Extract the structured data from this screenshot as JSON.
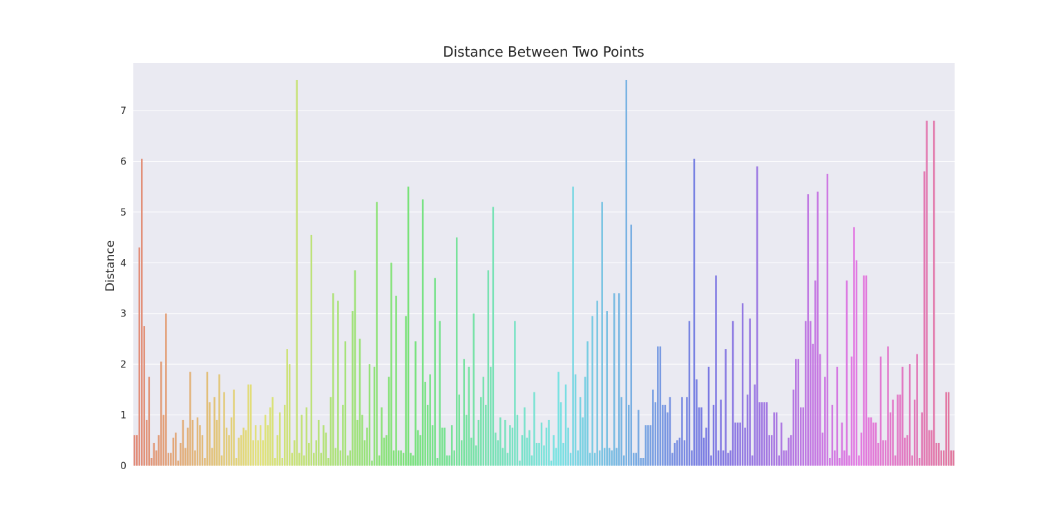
{
  "chart_data": {
    "type": "bar",
    "title": "Distance Between Two Points",
    "xlabel": "",
    "ylabel": "Distance",
    "ylim": [
      0,
      7.94
    ],
    "yticks": [
      "0",
      "1",
      "2",
      "3",
      "4",
      "5",
      "6",
      "7"
    ],
    "grid": true,
    "legend": "none",
    "palette": "husl",
    "values": [
      0.6,
      0.6,
      4.3,
      6.05,
      2.75,
      0.9,
      1.75,
      0.15,
      0.45,
      0.3,
      0.6,
      2.05,
      1.0,
      3.0,
      0.25,
      0.25,
      0.55,
      0.65,
      0.1,
      0.45,
      0.9,
      0.35,
      0.75,
      1.85,
      0.9,
      0.3,
      0.95,
      0.8,
      0.6,
      0.15,
      1.85,
      1.25,
      0.35,
      1.35,
      0.9,
      1.8,
      0.2,
      1.45,
      0.75,
      0.6,
      0.95,
      1.5,
      0.15,
      0.55,
      0.6,
      0.75,
      0.7,
      1.6,
      1.6,
      0.5,
      0.8,
      0.5,
      0.8,
      0.5,
      1.0,
      0.8,
      1.15,
      1.35,
      0.15,
      0.6,
      1.05,
      0.15,
      1.2,
      2.3,
      2.0,
      0.25,
      0.5,
      7.6,
      0.25,
      1.0,
      0.2,
      1.15,
      0.45,
      4.55,
      0.25,
      0.5,
      0.9,
      0.25,
      0.8,
      0.65,
      0.15,
      1.35,
      3.4,
      0.35,
      3.25,
      0.3,
      1.2,
      2.45,
      0.2,
      0.3,
      3.05,
      3.85,
      0.9,
      2.5,
      1.0,
      0.5,
      0.75,
      2.0,
      0.1,
      1.95,
      5.2,
      0.2,
      1.15,
      0.55,
      0.6,
      1.75,
      4.0,
      0.3,
      3.35,
      0.3,
      0.3,
      0.25,
      2.95,
      5.5,
      0.25,
      0.2,
      2.45,
      0.7,
      0.6,
      5.25,
      1.65,
      1.2,
      1.8,
      0.8,
      3.7,
      0.15,
      2.85,
      0.75,
      0.75,
      0.2,
      0.2,
      0.8,
      0.3,
      4.5,
      1.4,
      0.5,
      2.1,
      1.0,
      1.95,
      0.55,
      3.0,
      0.4,
      0.9,
      1.35,
      1.75,
      1.2,
      3.85,
      1.95,
      5.1,
      0.65,
      0.5,
      0.95,
      0.35,
      0.9,
      0.25,
      0.8,
      0.75,
      2.85,
      1.0,
      0.1,
      0.6,
      1.15,
      0.55,
      0.7,
      0.2,
      1.45,
      0.45,
      0.45,
      0.85,
      0.4,
      0.75,
      0.9,
      0.1,
      0.6,
      0.35,
      1.85,
      1.25,
      0.45,
      1.6,
      0.75,
      0.25,
      5.5,
      1.8,
      0.3,
      1.35,
      0.95,
      1.75,
      2.45,
      0.25,
      2.95,
      0.25,
      3.25,
      0.3,
      5.2,
      0.35,
      3.05,
      0.35,
      0.3,
      3.4,
      0.35,
      3.4,
      1.35,
      0.2,
      7.6,
      1.2,
      4.75,
      0.25,
      0.25,
      1.1,
      0.15,
      0.15,
      0.8,
      0.8,
      0.8,
      1.5,
      1.25,
      2.35,
      2.35,
      1.2,
      1.2,
      1.05,
      1.35,
      0.25,
      0.45,
      0.5,
      0.55,
      1.35,
      0.5,
      1.35,
      2.85,
      0.3,
      6.05,
      1.7,
      1.15,
      1.15,
      0.55,
      0.75,
      1.95,
      0.2,
      1.2,
      3.75,
      0.3,
      1.3,
      0.3,
      2.3,
      0.25,
      0.3,
      2.85,
      0.85,
      0.85,
      0.85,
      3.2,
      0.75,
      1.4,
      2.9,
      0.2,
      1.6,
      5.9,
      1.25,
      1.25,
      1.25,
      1.25,
      0.6,
      0.6,
      1.05,
      1.05,
      0.2,
      0.85,
      0.3,
      0.3,
      0.55,
      0.6,
      1.5,
      2.1,
      2.1,
      1.15,
      1.15,
      2.85,
      5.35,
      2.85,
      2.4,
      3.65,
      5.4,
      2.2,
      0.65,
      1.75,
      5.75,
      0.15,
      1.2,
      0.3,
      1.95,
      0.15,
      0.85,
      0.3,
      3.65,
      0.2,
      2.15,
      4.7,
      4.05,
      0.2,
      0.65,
      3.75,
      3.75,
      0.95,
      0.95,
      0.85,
      0.85,
      0.45,
      2.15,
      0.5,
      0.5,
      2.35,
      1.05,
      1.3,
      0.2,
      1.4,
      1.4,
      1.95,
      0.55,
      0.6,
      2.0,
      0.2,
      1.3,
      2.2,
      0.15,
      1.05,
      5.8,
      6.8,
      0.7,
      0.7,
      6.8,
      0.45,
      0.45,
      0.3,
      0.3,
      1.45,
      1.45,
      0.3,
      0.3
    ]
  }
}
